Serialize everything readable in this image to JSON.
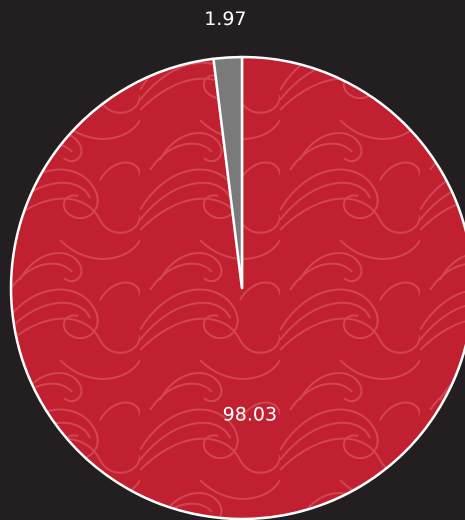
{
  "chart_data": {
    "type": "pie",
    "values": [
      98.03,
      1.97
    ],
    "colors": [
      "#c0202f",
      "#7a7a7a"
    ],
    "start_angle": 0,
    "direction": "clockwise"
  }
}
